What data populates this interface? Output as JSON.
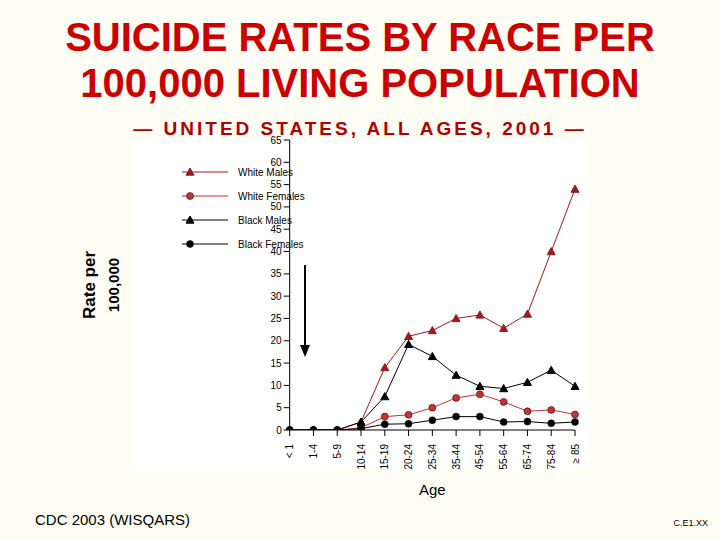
{
  "chart_data": {
    "type": "line",
    "title": "SUICIDE RATES BY RACE PER 100,000 LIVING POPULATION",
    "subtitle": "— UNITED STATES, ALL AGES, 2001 —",
    "x_label": "Age",
    "y_label": "Rate per 100,000",
    "annotations": [
      "CDC 2003 (WISQARS)",
      "C.E1.XX"
    ],
    "categories": [
      "< 1",
      "1-4",
      "5-9",
      "10-14",
      "15-19",
      "20-24",
      "25-34",
      "35-44",
      "45-54",
      "55-64",
      "65-74",
      "75-84",
      "≥ 85"
    ],
    "series": [
      {
        "name": "White Males",
        "color": "#9b1c1c",
        "marker": "triangle",
        "values": [
          0,
          0,
          0,
          1.8,
          14,
          21,
          22.3,
          25,
          25.8,
          22.8,
          26,
          40,
          54
        ]
      },
      {
        "name": "White Females",
        "color": "#c83232",
        "marker": "circle",
        "values": [
          0,
          0,
          0,
          0.5,
          3,
          3.4,
          5,
          7.2,
          8,
          6.3,
          4.2,
          4.5,
          3.5
        ]
      },
      {
        "name": "Black Males",
        "color": "#000000",
        "marker": "triangle",
        "values": [
          0,
          0,
          0,
          1.8,
          7.5,
          19.2,
          16.5,
          12.3,
          9.8,
          9.3,
          10.7,
          13.4,
          9.8
        ]
      },
      {
        "name": "Black Females",
        "color": "#000000",
        "marker": "circle",
        "values": [
          0,
          0,
          0,
          0.3,
          1.3,
          1.4,
          2.2,
          3,
          3,
          1.8,
          1.9,
          1.5,
          1.8
        ]
      }
    ],
    "ylim": [
      0,
      65
    ],
    "yticks": [
      0,
      5,
      10,
      15,
      20,
      25,
      30,
      35,
      40,
      45,
      50,
      55,
      60,
      65
    ],
    "legend": "upper left",
    "grid": false
  }
}
